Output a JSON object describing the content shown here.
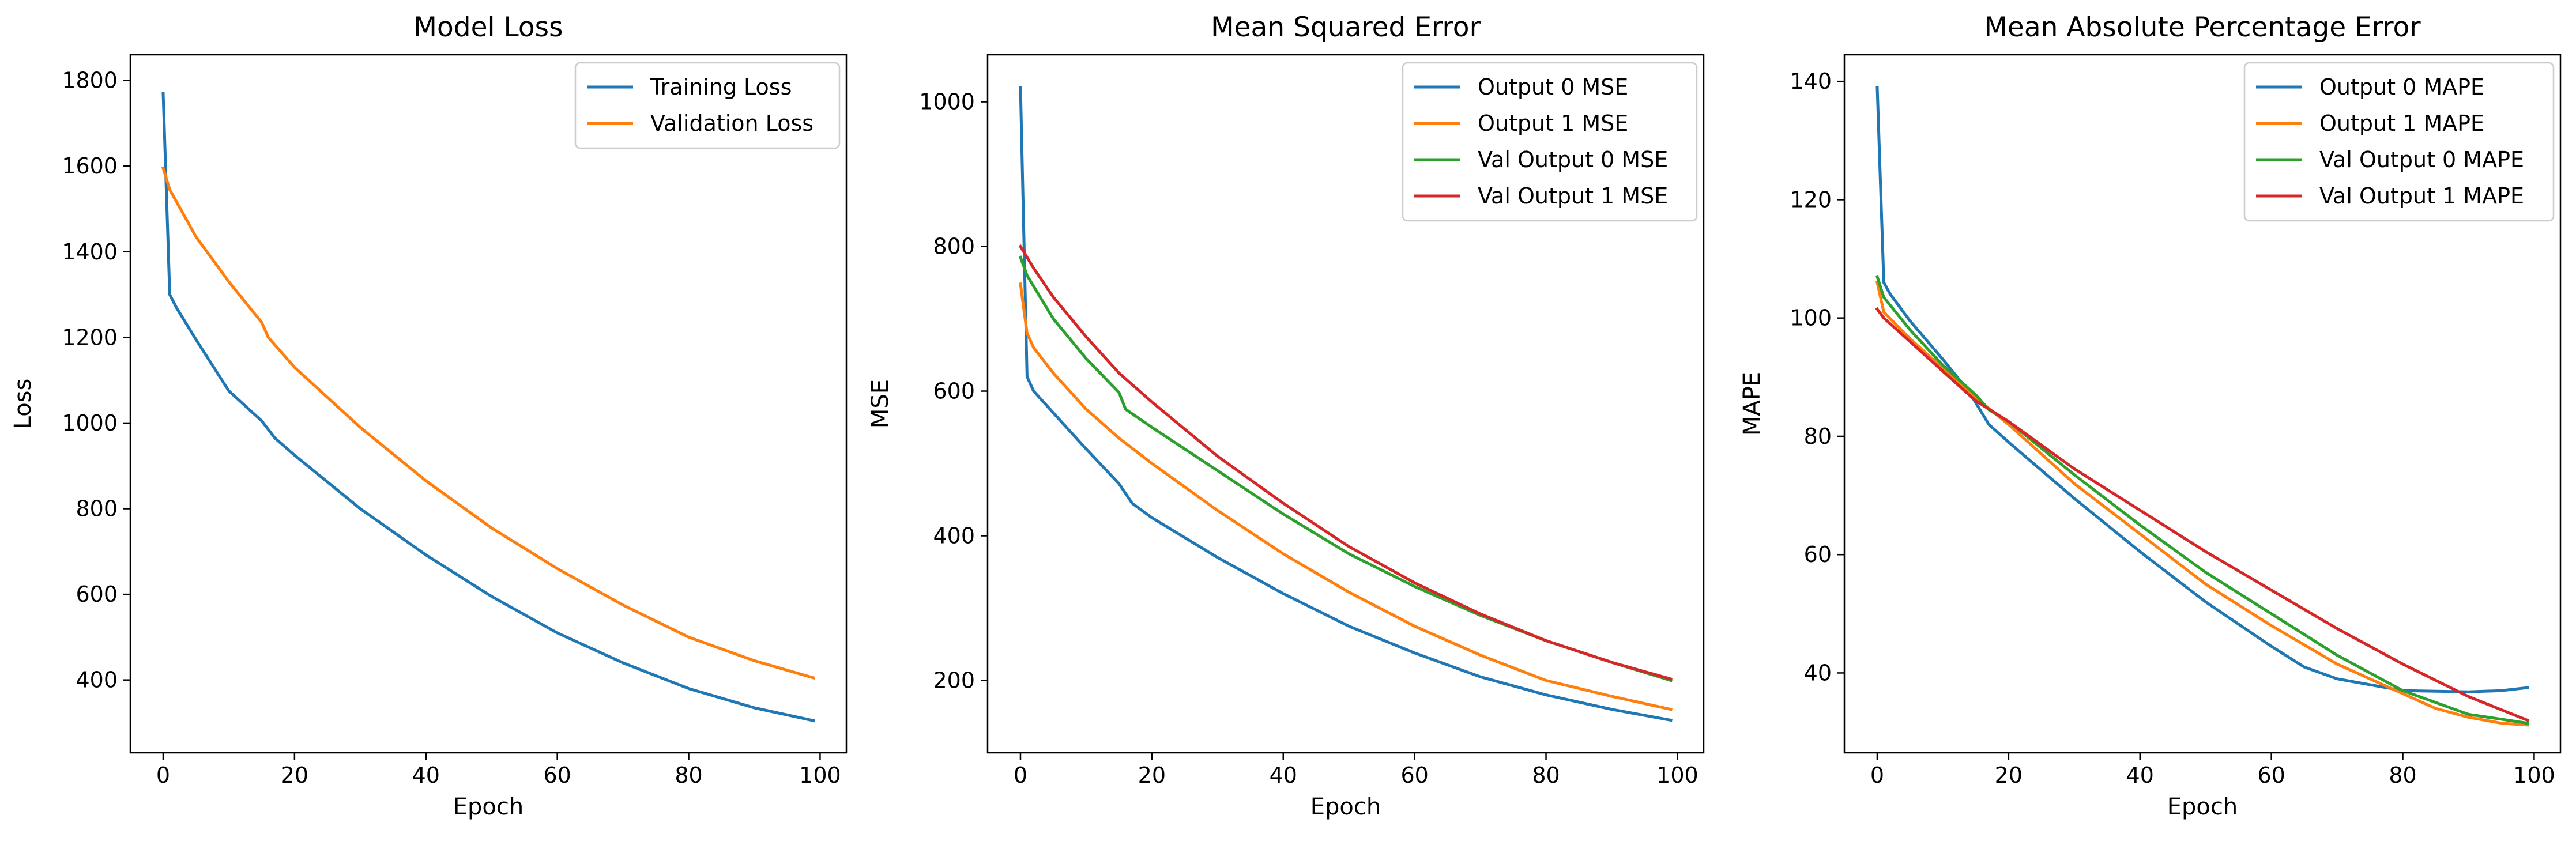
{
  "colors": {
    "blue": "#1f77b4",
    "orange": "#ff7f0e",
    "green": "#2ca02c",
    "red": "#d62728"
  },
  "chart_data": [
    {
      "type": "line",
      "title": "Model Loss",
      "xlabel": "Epoch",
      "ylabel": "Loss",
      "xlim": [
        -5,
        104
      ],
      "ylim": [
        230,
        1860
      ],
      "xticks": [
        0,
        20,
        40,
        60,
        80,
        100
      ],
      "yticks": [
        400,
        600,
        800,
        1000,
        1200,
        1400,
        1600,
        1800
      ],
      "grid": false,
      "legend": "upper right",
      "series": [
        {
          "name": "Training Loss",
          "color": "#1f77b4",
          "x": [
            0,
            1,
            2,
            5,
            10,
            15,
            17,
            20,
            30,
            40,
            50,
            60,
            70,
            80,
            90,
            99
          ],
          "y": [
            1770,
            1300,
            1270,
            1195,
            1075,
            1005,
            965,
            925,
            800,
            692,
            595,
            510,
            440,
            380,
            335,
            305
          ]
        },
        {
          "name": "Validation Loss",
          "color": "#ff7f0e",
          "x": [
            0,
            1,
            3,
            5,
            10,
            15,
            16,
            20,
            30,
            40,
            50,
            60,
            70,
            80,
            90,
            99
          ],
          "y": [
            1595,
            1545,
            1490,
            1435,
            1330,
            1235,
            1200,
            1130,
            990,
            865,
            755,
            660,
            575,
            500,
            445,
            405
          ]
        }
      ]
    },
    {
      "type": "line",
      "title": "Mean Squared Error",
      "xlabel": "Epoch",
      "ylabel": "MSE",
      "xlim": [
        -5,
        104
      ],
      "ylim": [
        100,
        1065
      ],
      "xticks": [
        0,
        20,
        40,
        60,
        80,
        100
      ],
      "yticks": [
        200,
        400,
        600,
        800,
        1000
      ],
      "grid": false,
      "legend": "upper right",
      "series": [
        {
          "name": "Output 0 MSE",
          "color": "#1f77b4",
          "x": [
            0,
            1,
            2,
            5,
            10,
            15,
            17,
            20,
            30,
            40,
            50,
            60,
            70,
            80,
            90,
            99
          ],
          "y": [
            1020,
            620,
            600,
            570,
            520,
            472,
            445,
            425,
            370,
            320,
            275,
            238,
            205,
            180,
            160,
            145
          ]
        },
        {
          "name": "Output 1 MSE",
          "color": "#ff7f0e",
          "x": [
            0,
            1,
            2,
            5,
            10,
            15,
            20,
            30,
            40,
            50,
            60,
            70,
            80,
            90,
            99
          ],
          "y": [
            748,
            680,
            660,
            625,
            575,
            535,
            500,
            435,
            375,
            322,
            275,
            235,
            200,
            178,
            160
          ]
        },
        {
          "name": "Val Output 0 MSE",
          "color": "#2ca02c",
          "x": [
            0,
            1,
            5,
            10,
            15,
            16,
            20,
            30,
            40,
            50,
            60,
            70,
            80,
            90,
            99
          ],
          "y": [
            785,
            760,
            700,
            645,
            598,
            575,
            550,
            490,
            430,
            375,
            330,
            290,
            255,
            225,
            200
          ]
        },
        {
          "name": "Val Output 1 MSE",
          "color": "#d62728",
          "x": [
            0,
            2,
            5,
            10,
            15,
            20,
            30,
            40,
            50,
            60,
            70,
            80,
            90,
            99
          ],
          "y": [
            800,
            770,
            730,
            675,
            625,
            585,
            510,
            445,
            385,
            335,
            292,
            255,
            225,
            202
          ]
        }
      ]
    },
    {
      "type": "line",
      "title": "Mean Absolute Percentage Error",
      "xlabel": "Epoch",
      "ylabel": "MAPE",
      "xlim": [
        -5,
        104
      ],
      "ylim": [
        26.5,
        144.5
      ],
      "xticks": [
        0,
        20,
        40,
        60,
        80,
        100
      ],
      "yticks": [
        40,
        60,
        80,
        100,
        120,
        140
      ],
      "grid": false,
      "legend": "upper right",
      "series": [
        {
          "name": "Output 0 MAPE",
          "color": "#1f77b4",
          "x": [
            0,
            1,
            2,
            5,
            10,
            14,
            17,
            20,
            30,
            40,
            50,
            60,
            65,
            70,
            80,
            90,
            95,
            99
          ],
          "y": [
            139,
            106,
            104,
            99.5,
            93,
            87.5,
            82,
            79,
            69.5,
            60.5,
            52,
            44.5,
            41,
            39,
            37,
            36.8,
            37,
            37.5
          ]
        },
        {
          "name": "Output 1 MAPE",
          "color": "#ff7f0e",
          "x": [
            0,
            1,
            5,
            10,
            15,
            20,
            30,
            40,
            50,
            60,
            70,
            80,
            85,
            90,
            95,
            99
          ],
          "y": [
            106,
            101,
            96.5,
            91.5,
            86.5,
            82,
            72,
            63.5,
            55,
            48,
            41.5,
            36.5,
            34,
            32.5,
            31.5,
            31.2
          ]
        },
        {
          "name": "Val Output 0 MAPE",
          "color": "#2ca02c",
          "x": [
            0,
            1,
            5,
            10,
            15,
            17,
            20,
            30,
            40,
            50,
            60,
            70,
            80,
            90,
            99
          ],
          "y": [
            107,
            103.5,
            98,
            92,
            87,
            84.5,
            82.5,
            73.5,
            65,
            57,
            50,
            43,
            37,
            33,
            31.5
          ]
        },
        {
          "name": "Val Output 1 MAPE",
          "color": "#d62728",
          "x": [
            0,
            1,
            5,
            10,
            15,
            20,
            30,
            40,
            50,
            60,
            70,
            80,
            90,
            99
          ],
          "y": [
            101.5,
            100,
            96,
            91,
            86,
            82.5,
            74.5,
            67.5,
            60.5,
            54,
            47.5,
            41.5,
            36,
            32
          ]
        }
      ]
    }
  ]
}
